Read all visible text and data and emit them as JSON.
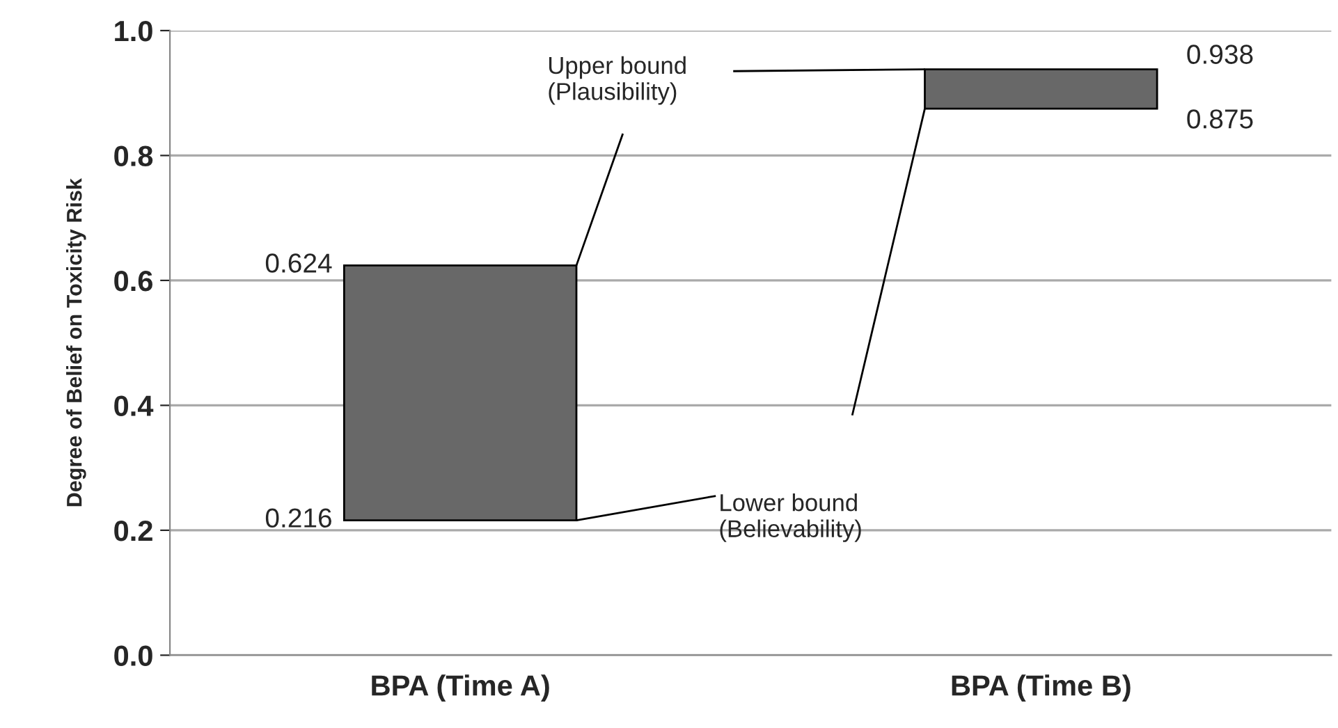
{
  "chart_data": {
    "type": "bar",
    "ylabel": "Degree of Belief on Toxicity Risk",
    "categories": [
      "BPA (Time A)",
      "BPA (Time B)"
    ],
    "base": [
      0.216,
      0.875
    ],
    "values": [
      0.408,
      0.063
    ],
    "color": "#686868",
    "ylim": [
      0,
      1
    ],
    "yticks": [
      {
        "value": 0,
        "label": "0.0"
      },
      {
        "value": 0.2,
        "label": "0.2"
      },
      {
        "value": 0.4,
        "label": "0.4"
      },
      {
        "value": 0.6,
        "label": "0.6"
      },
      {
        "value": 0.8,
        "label": "0.8"
      },
      {
        "value": 1,
        "label": "1.0"
      }
    ],
    "grid": "y",
    "annotations": [
      "0.624",
      "0.216",
      "0.938",
      "0.875",
      "Upper bound\n(Plausibility)",
      "Lower bound\n(Believability)"
    ]
  }
}
